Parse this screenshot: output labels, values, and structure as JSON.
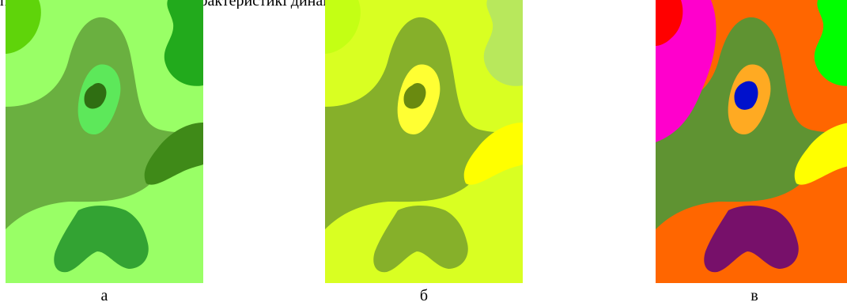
{
  "text": {
    "top_line": "позволяють. Ще кількісній характеристикі динаміки, контрастності."
  },
  "figures": [
    {
      "id": "a",
      "caption": "а",
      "colors": {
        "background": "#99ff66",
        "band": "#6ab040",
        "top_left": "#5fd40a",
        "top_right": "#22aa1c",
        "right_blob": "#3f8a18",
        "bottom_blob": "#33a333",
        "inner_teardrop": "#5de85a",
        "center_dot": "#2f6e12"
      }
    },
    {
      "id": "b",
      "caption": "б",
      "colors": {
        "background": "#d9ff22",
        "band": "#86b02a",
        "top_left": "#c4ff14",
        "top_right": "#b8e85c",
        "right_blob": "#ffff00",
        "bottom_blob": "#86b02a",
        "inner_teardrop": "#ffff33",
        "center_dot": "#6a8a10"
      }
    },
    {
      "id": "c",
      "caption": "в",
      "colors": {
        "background": "#ff6600",
        "band": "#5f9332",
        "top_left": "#ff00cc",
        "top_left_corner": "#ff0000",
        "top_right": "#00ff00",
        "right_blob": "#ffff00",
        "bottom_blob": "#77106a",
        "inner_teardrop": "#ffaa22",
        "center_dot": "#0011cc"
      }
    }
  ]
}
